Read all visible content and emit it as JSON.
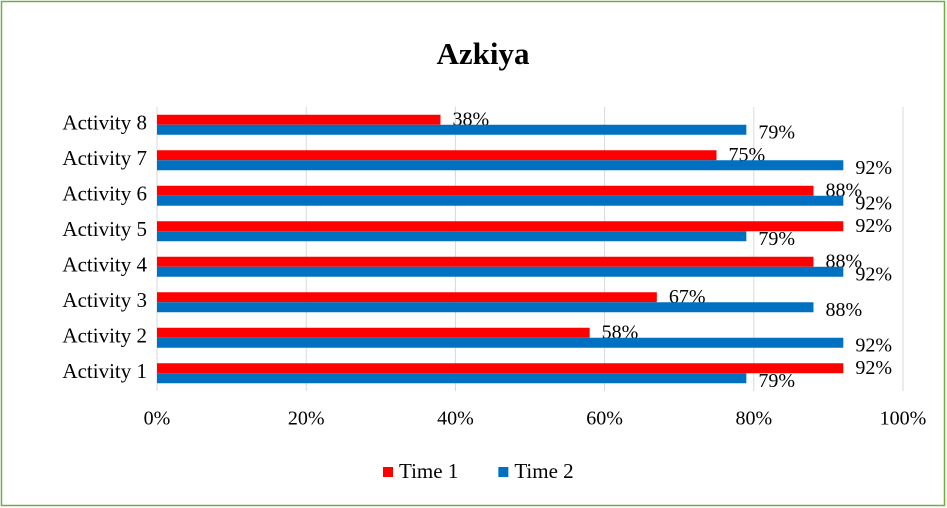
{
  "chart_data": {
    "type": "hbar",
    "title": "Azkiya",
    "categories": [
      "Activity 1",
      "Activity 2",
      "Activity 3",
      "Activity 4",
      "Activity 5",
      "Activity 6",
      "Activity 7",
      "Activity 8"
    ],
    "series": [
      {
        "name": "Time 1",
        "color": "#ff0000",
        "values": [
          92,
          58,
          67,
          88,
          92,
          88,
          75,
          38
        ],
        "value_labels": [
          "92%",
          "58%",
          "67%",
          "88%",
          "92%",
          "88%",
          "75%",
          "38%"
        ]
      },
      {
        "name": "Time 2",
        "color": "#0070c0",
        "values": [
          79,
          92,
          88,
          92,
          79,
          92,
          92,
          79
        ],
        "value_labels": [
          "79%",
          "92%",
          "88%",
          "92%",
          "79%",
          "92%",
          "92%",
          "79%"
        ]
      }
    ],
    "xlim": [
      0,
      100
    ],
    "xticks": [
      {
        "value": 0,
        "label": "0%"
      },
      {
        "value": 20,
        "label": "20%"
      },
      {
        "value": 40,
        "label": "40%"
      },
      {
        "value": 60,
        "label": "60%"
      },
      {
        "value": 80,
        "label": "80%"
      },
      {
        "value": 100,
        "label": "100%"
      }
    ],
    "grid": true,
    "legend": "bottom"
  }
}
